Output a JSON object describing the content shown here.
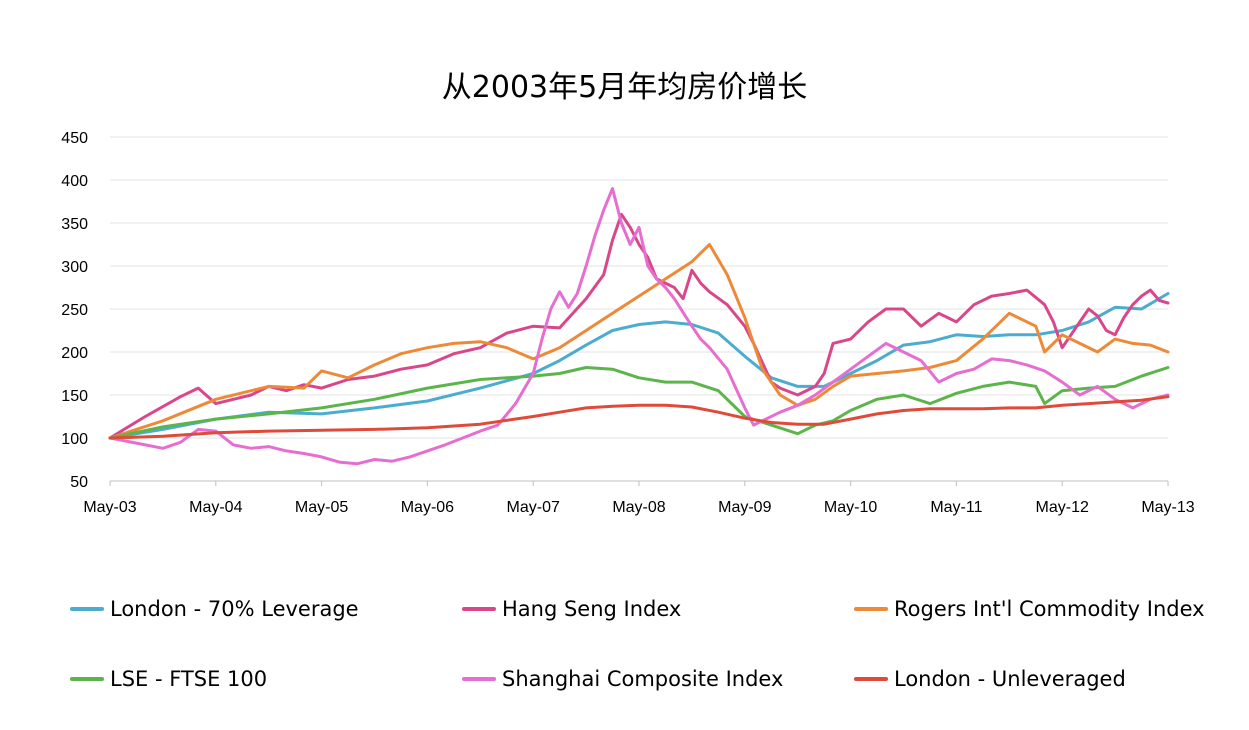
{
  "chart_data": {
    "type": "line",
    "title": "从2003年5月年均房价增长",
    "xlabel": "",
    "ylabel": "",
    "ylim": [
      50,
      450
    ],
    "yticks": [
      50,
      100,
      150,
      200,
      250,
      300,
      350,
      400,
      450
    ],
    "xticks": [
      "May-03",
      "May-04",
      "May-05",
      "May-06",
      "May-07",
      "May-08",
      "May-09",
      "May-10",
      "May-11",
      "May-12",
      "May-13"
    ],
    "grid": "horizontal",
    "legend_position": "bottom",
    "series": [
      {
        "name": "London - 70% Leverage",
        "color": "#4BACD0",
        "x": [
          0,
          6,
          12,
          18,
          24,
          30,
          36,
          42,
          48,
          51,
          54,
          57,
          60,
          63,
          66,
          69,
          72,
          75,
          78,
          81,
          84,
          87,
          90,
          93,
          96,
          99,
          102,
          105,
          108,
          111,
          114,
          117,
          120
        ],
        "values": [
          100,
          110,
          122,
          130,
          128,
          135,
          143,
          158,
          175,
          190,
          208,
          225,
          232,
          235,
          232,
          222,
          195,
          170,
          160,
          160,
          175,
          190,
          208,
          212,
          220,
          218,
          220,
          220,
          225,
          235,
          252,
          250,
          268
        ]
      },
      {
        "name": "Hang Seng Index",
        "color": "#D9478A",
        "x": [
          0,
          4,
          8,
          10,
          12,
          14,
          16,
          18,
          20,
          22,
          24,
          27,
          30,
          33,
          36,
          39,
          42,
          45,
          48,
          51,
          54,
          56,
          57,
          58,
          59,
          60,
          61,
          62,
          64,
          65,
          66,
          67,
          68,
          70,
          72,
          73,
          75,
          76,
          78,
          80,
          81,
          82,
          84,
          86,
          88,
          90,
          92,
          94,
          96,
          98,
          100,
          102,
          104,
          106,
          107,
          108,
          109,
          110,
          111,
          112,
          113,
          114,
          115,
          116,
          117,
          118,
          119,
          120
        ],
        "values": [
          100,
          125,
          148,
          158,
          140,
          145,
          150,
          160,
          155,
          162,
          158,
          168,
          172,
          180,
          185,
          198,
          205,
          222,
          230,
          228,
          262,
          290,
          330,
          360,
          345,
          325,
          310,
          285,
          275,
          262,
          295,
          280,
          270,
          255,
          230,
          210,
          165,
          158,
          150,
          160,
          175,
          210,
          215,
          235,
          250,
          250,
          230,
          245,
          235,
          255,
          265,
          268,
          272,
          255,
          235,
          205,
          220,
          235,
          250,
          242,
          225,
          220,
          240,
          255,
          265,
          272,
          260,
          257
        ]
      },
      {
        "name": "Rogers Int'l Commodity Index",
        "color": "#ED8A38",
        "x": [
          0,
          6,
          12,
          18,
          22,
          24,
          27,
          30,
          33,
          36,
          39,
          42,
          45,
          48,
          51,
          54,
          57,
          60,
          63,
          66,
          68,
          70,
          72,
          74,
          76,
          78,
          80,
          82,
          84,
          87,
          90,
          93,
          96,
          99,
          102,
          105,
          106,
          108,
          110,
          112,
          114,
          116,
          118,
          120
        ],
        "values": [
          100,
          120,
          145,
          160,
          158,
          178,
          170,
          185,
          198,
          205,
          210,
          212,
          205,
          192,
          205,
          225,
          245,
          265,
          285,
          305,
          325,
          290,
          240,
          180,
          150,
          138,
          145,
          160,
          172,
          175,
          178,
          182,
          190,
          215,
          245,
          230,
          200,
          220,
          210,
          200,
          215,
          210,
          208,
          200
        ]
      },
      {
        "name": "LSE - FTSE 100",
        "color": "#5CB54A",
        "x": [
          0,
          6,
          12,
          18,
          24,
          30,
          36,
          42,
          48,
          51,
          54,
          57,
          60,
          63,
          66,
          69,
          72,
          75,
          78,
          80,
          82,
          84,
          87,
          90,
          93,
          96,
          99,
          102,
          105,
          106,
          108,
          111,
          114,
          117,
          120
        ],
        "values": [
          100,
          113,
          122,
          128,
          135,
          145,
          158,
          168,
          172,
          175,
          182,
          180,
          170,
          165,
          165,
          155,
          125,
          115,
          105,
          115,
          120,
          132,
          145,
          150,
          140,
          152,
          160,
          165,
          160,
          140,
          155,
          158,
          160,
          172,
          182
        ]
      },
      {
        "name": "Shanghai Composite Index",
        "color": "#E66ED0",
        "x": [
          0,
          4,
          6,
          8,
          10,
          12,
          14,
          16,
          18,
          20,
          22,
          24,
          26,
          28,
          30,
          32,
          34,
          36,
          38,
          40,
          42,
          44,
          46,
          48,
          49,
          50,
          51,
          52,
          53,
          54,
          55,
          56,
          57,
          58,
          59,
          60,
          61,
          62,
          63,
          64,
          66,
          67,
          68,
          70,
          72,
          73,
          74,
          76,
          78,
          80,
          82,
          84,
          86,
          88,
          90,
          92,
          94,
          96,
          98,
          100,
          102,
          104,
          106,
          108,
          110,
          112,
          114,
          116,
          118,
          120
        ],
        "values": [
          100,
          92,
          88,
          95,
          110,
          108,
          92,
          88,
          90,
          85,
          82,
          78,
          72,
          70,
          75,
          73,
          78,
          85,
          92,
          100,
          108,
          115,
          140,
          175,
          215,
          250,
          270,
          252,
          268,
          300,
          335,
          365,
          390,
          350,
          325,
          345,
          300,
          285,
          275,
          262,
          230,
          215,
          205,
          180,
          135,
          115,
          120,
          130,
          138,
          150,
          165,
          180,
          195,
          210,
          200,
          190,
          165,
          175,
          180,
          192,
          190,
          185,
          178,
          165,
          150,
          160,
          145,
          135,
          145,
          150
        ]
      },
      {
        "name": "London - Unleveraged",
        "color": "#E04A3A",
        "x": [
          0,
          6,
          12,
          18,
          24,
          30,
          36,
          42,
          48,
          51,
          54,
          57,
          60,
          63,
          66,
          69,
          72,
          75,
          78,
          81,
          84,
          87,
          90,
          93,
          96,
          99,
          102,
          105,
          108,
          111,
          114,
          117,
          120
        ],
        "values": [
          100,
          102,
          106,
          108,
          109,
          110,
          112,
          116,
          125,
          130,
          135,
          137,
          138,
          138,
          136,
          130,
          123,
          118,
          116,
          116,
          122,
          128,
          132,
          134,
          134,
          134,
          135,
          135,
          138,
          140,
          142,
          144,
          148
        ]
      }
    ]
  }
}
